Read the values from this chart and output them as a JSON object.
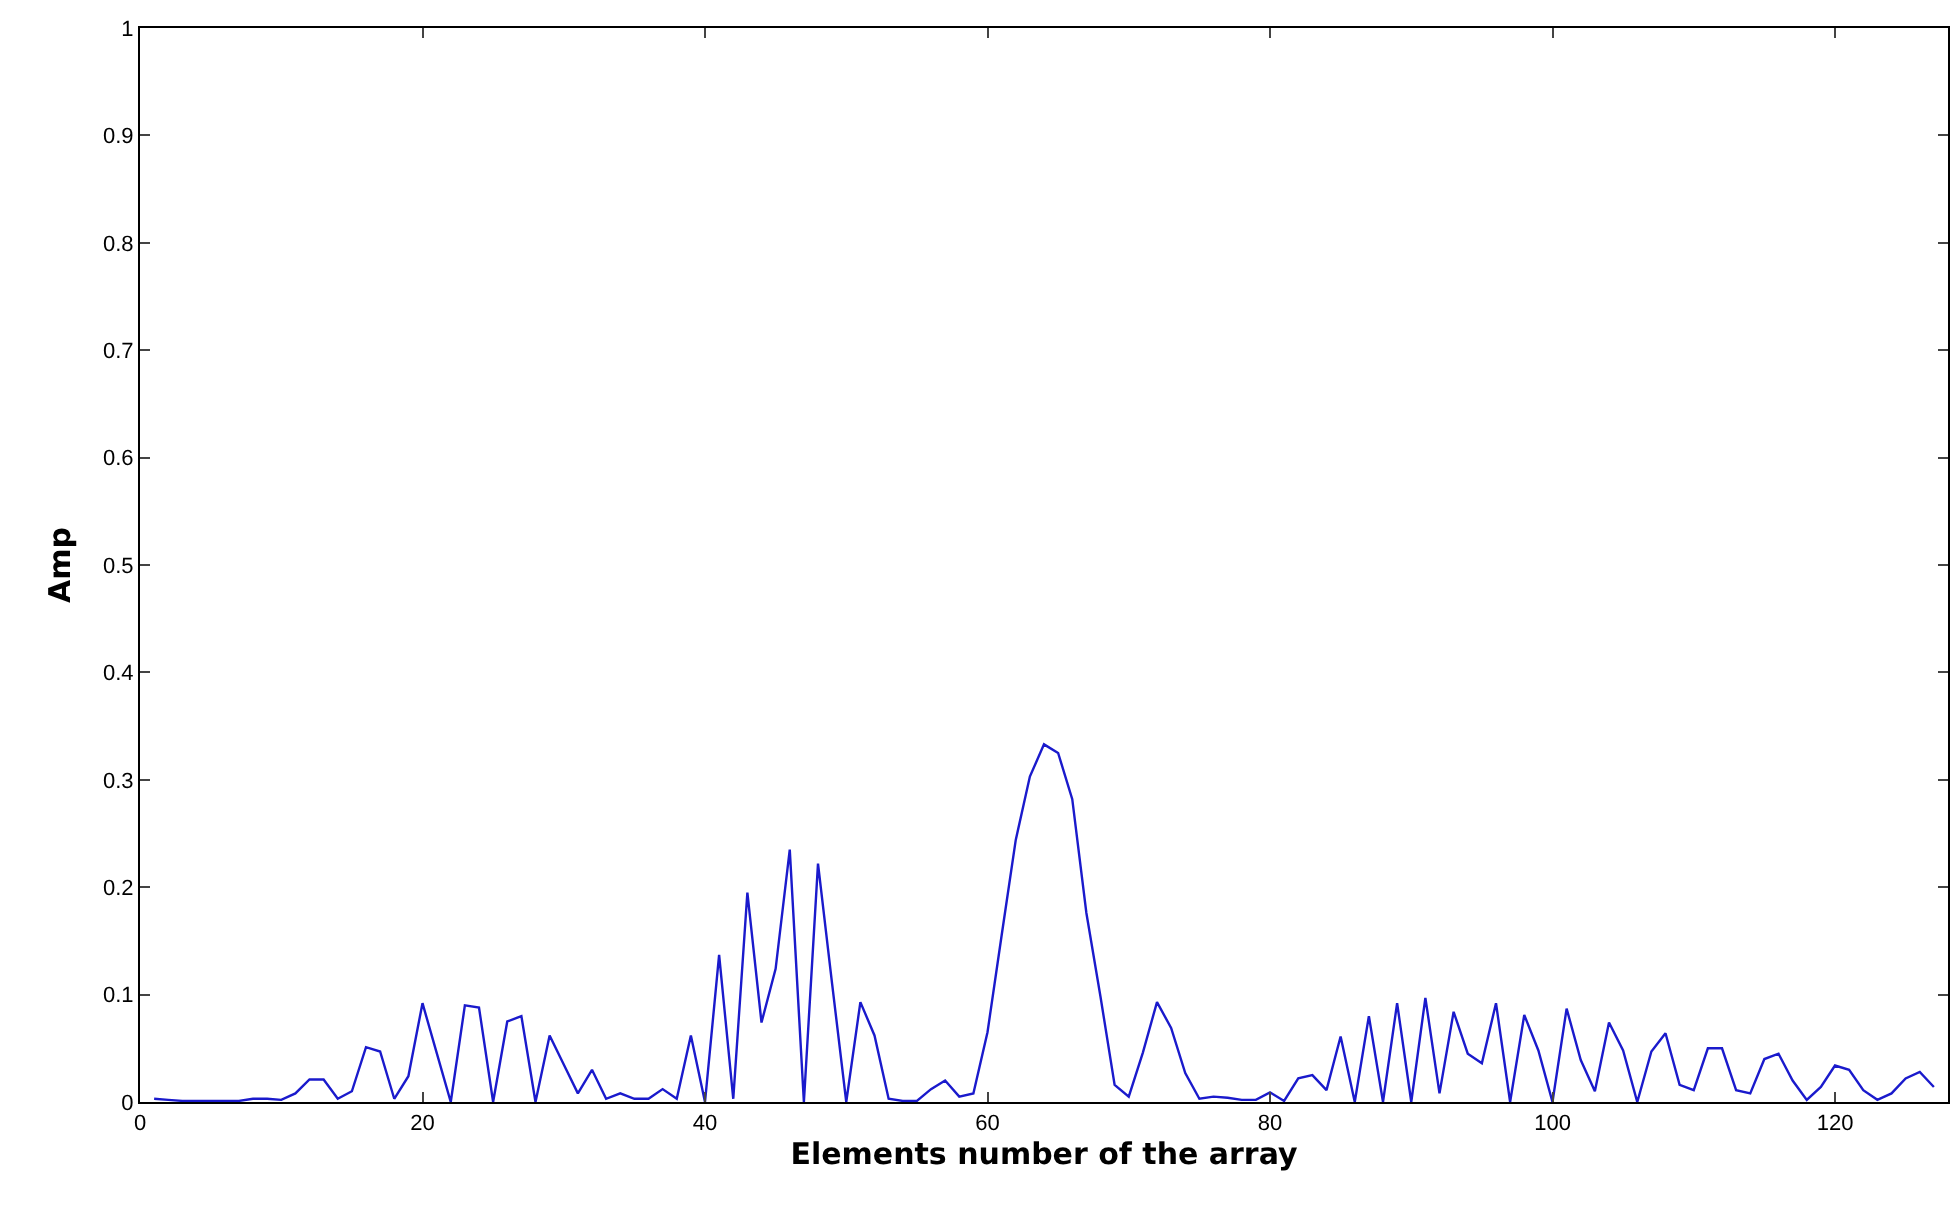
{
  "chart_data": {
    "type": "line",
    "xlabel": "Elements number of the array",
    "ylabel": "Amp",
    "xlim": [
      0,
      128
    ],
    "xticks": [
      0,
      20,
      40,
      60,
      80,
      100,
      120
    ],
    "ylim": [
      0,
      1
    ],
    "yticks": [
      0,
      0.1,
      0.2,
      0.3,
      0.4,
      0.5,
      0.6,
      0.7,
      0.8,
      0.9,
      1
    ],
    "x": [
      1,
      2,
      3,
      4,
      5,
      6,
      7,
      8,
      9,
      10,
      11,
      12,
      13,
      14,
      15,
      16,
      17,
      18,
      19,
      20,
      21,
      22,
      23,
      24,
      25,
      26,
      27,
      28,
      29,
      30,
      31,
      32,
      33,
      34,
      35,
      36,
      37,
      38,
      39,
      40,
      41,
      42,
      43,
      44,
      45,
      46,
      47,
      48,
      49,
      50,
      51,
      52,
      53,
      54,
      55,
      56,
      57,
      58,
      59,
      60,
      61,
      62,
      63,
      64,
      65,
      66,
      67,
      68,
      69,
      70,
      71,
      72,
      73,
      74,
      75,
      76,
      77,
      78,
      79,
      80,
      81,
      82,
      83,
      84,
      85,
      86,
      87,
      88,
      89,
      90,
      91,
      92,
      93,
      94,
      95,
      96,
      97,
      98,
      99,
      100,
      101,
      102,
      103,
      104,
      105,
      106,
      107,
      108,
      109,
      110,
      111,
      112,
      113,
      114,
      115,
      116,
      117,
      118,
      119,
      120,
      121,
      122,
      123,
      124,
      125,
      126,
      127
    ],
    "series": [
      {
        "color": "#1a1acc",
        "values": [
          0.003,
          0.002,
          0.001,
          0.001,
          0.001,
          0.001,
          0.001,
          0.003,
          0.003,
          0.002,
          0.008,
          0.021,
          0.021,
          0.003,
          0.01,
          0.051,
          0.047,
          0.003,
          0.024,
          0.092,
          0.046,
          0,
          0.09,
          0.088,
          0,
          0.075,
          0.08,
          0,
          0.062,
          0.035,
          0.008,
          0.03,
          0.003,
          0.008,
          0.003,
          0.003,
          0.012,
          0.003,
          0.062,
          0,
          0.137,
          0.003,
          0.195,
          0.074,
          0.124,
          0.235,
          0,
          0.222,
          0.11,
          0,
          0.093,
          0.062,
          0.003,
          0.001,
          0.001,
          0.012,
          0.02,
          0.005,
          0.008,
          0.065,
          0.155,
          0.244,
          0.303,
          0.333,
          0.325,
          0.282,
          0.176,
          0.098,
          0.016,
          0.005,
          0.046,
          0.093,
          0.069,
          0.027,
          0.003,
          0.005,
          0.004,
          0.002,
          0.002,
          0.009,
          0.001,
          0.022,
          0.025,
          0.011,
          0.061,
          0,
          0.08,
          0,
          0.092,
          0,
          0.097,
          0.008,
          0.084,
          0.045,
          0.036,
          0.092,
          0,
          0.081,
          0.048,
          0,
          0.087,
          0.039,
          0.01,
          0.074,
          0.048,
          0,
          0.047,
          0.064,
          0.016,
          0.011,
          0.05,
          0.05,
          0.011,
          0.008,
          0.04,
          0.045,
          0.02,
          0.002,
          0.014,
          0.034,
          0.03,
          0.011,
          0.002,
          0.008,
          0.022,
          0.028,
          0.014
        ]
      }
    ]
  }
}
